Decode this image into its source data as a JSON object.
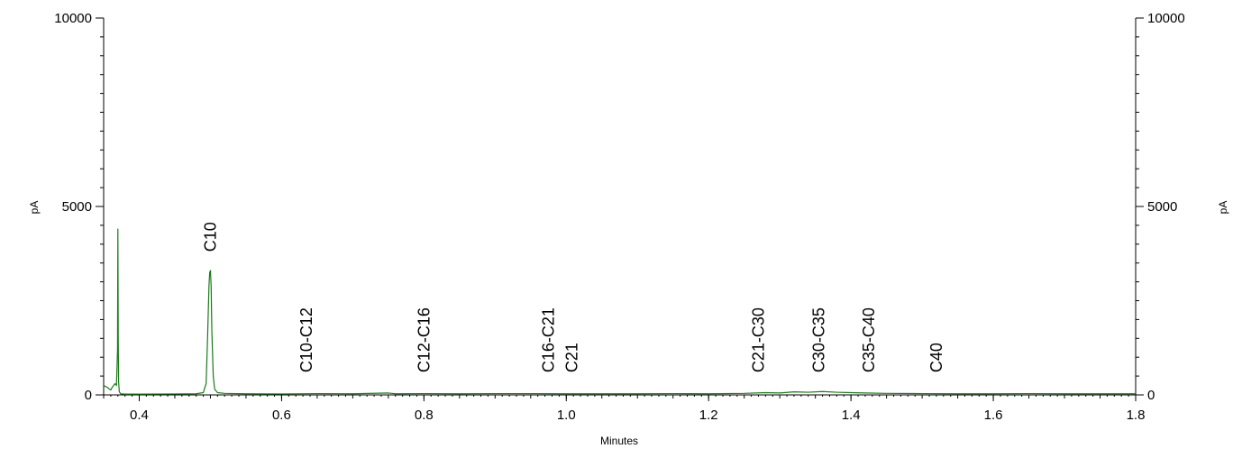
{
  "chart_data": {
    "type": "line",
    "title": "",
    "xlabel": "Minutes",
    "ylabel": "pA",
    "ylabel_right": "pA",
    "xlim": [
      0.35,
      1.8
    ],
    "ylim": [
      0,
      10000
    ],
    "x_ticks": [
      0.4,
      0.6,
      0.8,
      1.0,
      1.2,
      1.4,
      1.6,
      1.8
    ],
    "x_tick_labels": [
      "0.4",
      "0.6",
      "0.8",
      "1.0",
      "1.2",
      "1.4",
      "1.6",
      "1.8"
    ],
    "y_ticks": [
      0,
      5000,
      10000
    ],
    "y_tick_labels": [
      "0",
      "5000",
      "10000"
    ],
    "grid": false,
    "line_color": "#1a7a1a",
    "series": [
      {
        "x": [
          0.35,
          0.355,
          0.36,
          0.362,
          0.364,
          0.366,
          0.368,
          0.3695,
          0.37,
          0.3705,
          0.371,
          0.372,
          0.374,
          0.38,
          0.4,
          0.45,
          0.48,
          0.49,
          0.494,
          0.496,
          0.498,
          0.499,
          0.5,
          0.501,
          0.502,
          0.504,
          0.506,
          0.51,
          0.52,
          0.55,
          0.6,
          0.65,
          0.7,
          0.75,
          0.76,
          0.8,
          0.85,
          0.9,
          0.95,
          1.0,
          1.05,
          1.1,
          1.15,
          1.2,
          1.25,
          1.28,
          1.3,
          1.32,
          1.34,
          1.36,
          1.38,
          1.4,
          1.42,
          1.45,
          1.5,
          1.55,
          1.6,
          1.65,
          1.7,
          1.75,
          1.8
        ],
        "y": [
          250,
          200,
          130,
          200,
          250,
          300,
          250,
          1200,
          4400,
          1500,
          350,
          80,
          30,
          20,
          20,
          25,
          30,
          60,
          300,
          1500,
          2900,
          3250,
          3300,
          2900,
          1700,
          500,
          150,
          60,
          40,
          30,
          25,
          35,
          30,
          50,
          30,
          35,
          30,
          35,
          35,
          30,
          30,
          30,
          35,
          30,
          40,
          60,
          50,
          80,
          70,
          90,
          70,
          60,
          50,
          40,
          35,
          30,
          30,
          35,
          30,
          30,
          30
        ]
      }
    ],
    "annotations": [
      {
        "text": "C10",
        "x": 0.5,
        "y": 3700
      },
      {
        "text": "C10-C12",
        "x": 0.635,
        "y": 500
      },
      {
        "text": "C12-C16",
        "x": 0.8,
        "y": 500
      },
      {
        "text": "C16-C21",
        "x": 0.975,
        "y": 500
      },
      {
        "text": "C21",
        "x": 1.008,
        "y": 500
      },
      {
        "text": "C21-C30",
        "x": 1.27,
        "y": 500
      },
      {
        "text": "C30-C35",
        "x": 1.355,
        "y": 500
      },
      {
        "text": "C35-C40",
        "x": 1.425,
        "y": 500
      },
      {
        "text": "C40",
        "x": 1.52,
        "y": 500
      }
    ]
  }
}
